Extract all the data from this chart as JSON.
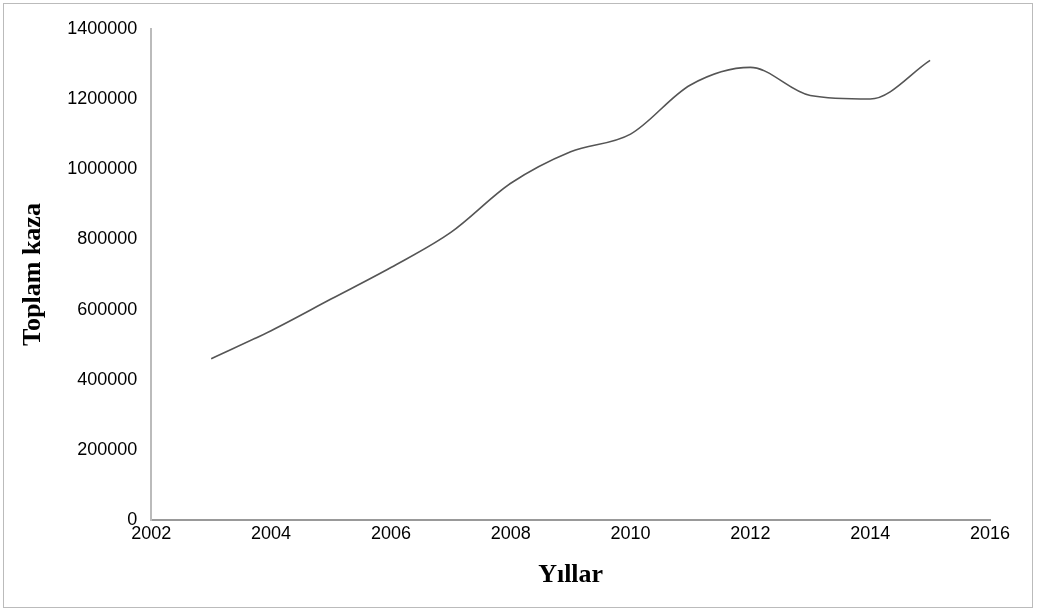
{
  "chart_data": {
    "type": "line",
    "xlabel": "Yıllar",
    "ylabel": "Toplam kaza",
    "x": [
      2003,
      2004,
      2005,
      2006,
      2007,
      2008,
      2009,
      2010,
      2011,
      2012,
      2013,
      2014,
      2015
    ],
    "series": [
      {
        "color": "#555555",
        "values": [
          460000,
          540000,
          630000,
          720000,
          820000,
          960000,
          1050000,
          1100000,
          1240000,
          1290000,
          1210000,
          1200000,
          1310000
        ]
      }
    ],
    "xlim": [
      2002,
      2016
    ],
    "xticks": [
      2002,
      2004,
      2006,
      2008,
      2010,
      2012,
      2014,
      2016
    ],
    "ylim": [
      0,
      1400000
    ],
    "yticks": [
      0,
      200000,
      400000,
      600000,
      800000,
      1000000,
      1200000,
      1400000
    ],
    "legend": false,
    "grid": false,
    "marker": "none",
    "line_style": "solid"
  }
}
